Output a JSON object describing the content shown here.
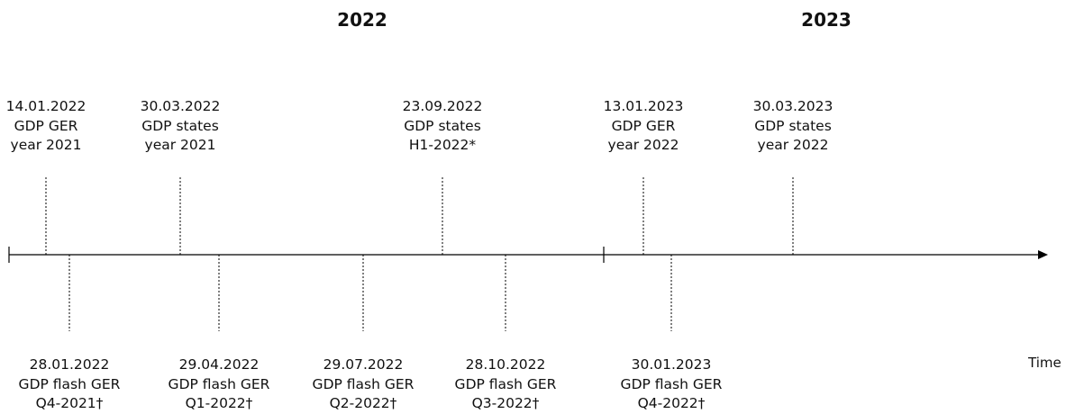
{
  "years": [
    "2022",
    "2023"
  ],
  "axis_label": "Time",
  "events_above": [
    {
      "date": "14.01.2022",
      "line2": "GDP GER",
      "line3": "year 2021"
    },
    {
      "date": "30.03.2022",
      "line2": "GDP states",
      "line3": "year 2021"
    },
    {
      "date": "23.09.2022",
      "line2": "GDP states",
      "line3": "H1-2022*"
    },
    {
      "date": "13.01.2023",
      "line2": "GDP GER",
      "line3": "year 2022"
    },
    {
      "date": "30.03.2023",
      "line2": "GDP states",
      "line3": "year 2022"
    }
  ],
  "events_below": [
    {
      "date": "28.01.2022",
      "line2": "GDP flash GER",
      "line3": "Q4-2021†"
    },
    {
      "date": "29.04.2022",
      "line2": "GDP flash GER",
      "line3": "Q1-2022†"
    },
    {
      "date": "29.07.2022",
      "line2": "GDP flash GER",
      "line3": "Q2-2022†"
    },
    {
      "date": "28.10.2022",
      "line2": "GDP flash GER",
      "line3": "Q3-2022†"
    },
    {
      "date": "30.01.2023",
      "line2": "GDP flash GER",
      "line3": "Q4-2022†"
    }
  ]
}
